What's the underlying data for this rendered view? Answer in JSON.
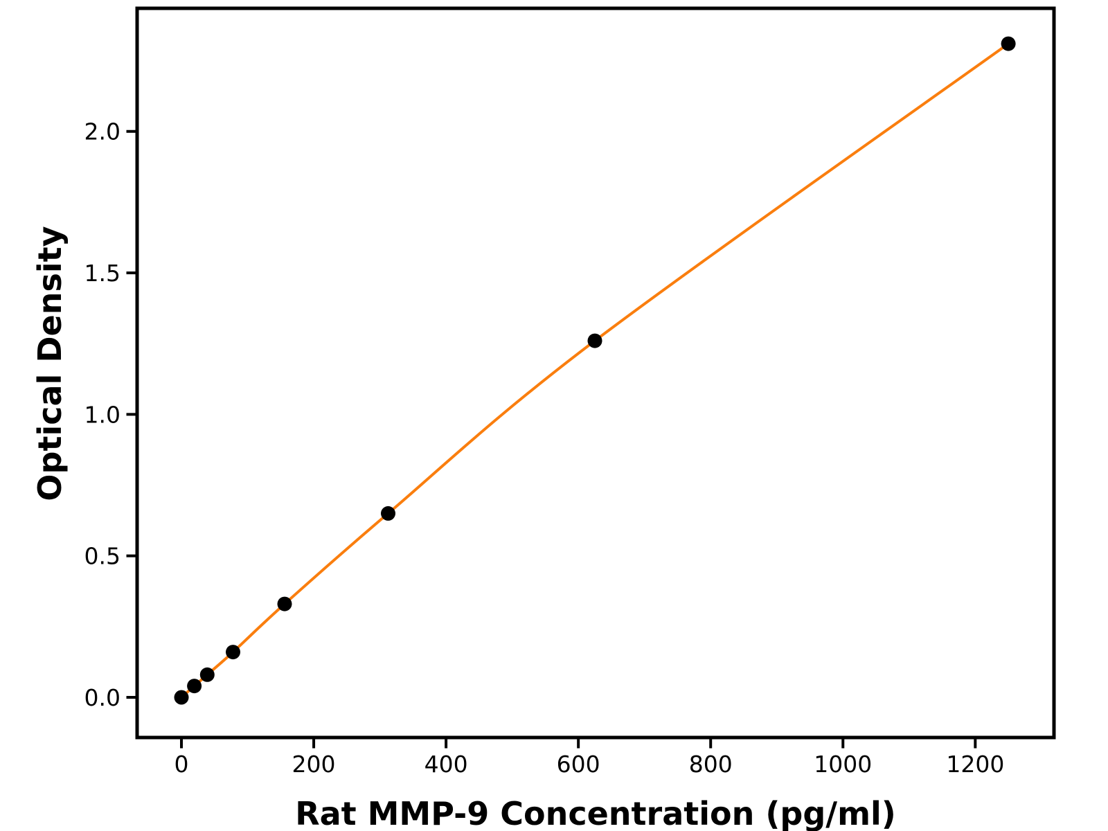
{
  "figure": {
    "background_color": "#FFFFFF",
    "axis_color": "#000000"
  },
  "chart_data": {
    "type": "line",
    "title": "",
    "xlabel": "Rat MMP-9 Concentration (pg/ml)",
    "ylabel": "Optical Density",
    "series": [
      {
        "x": [
          0,
          19.5,
          39,
          78,
          156,
          312.5,
          625,
          1250
        ],
        "y": [
          0.0,
          0.04,
          0.08,
          0.16,
          0.33,
          0.65,
          1.26,
          2.31
        ],
        "line_color": "#FA7E0E",
        "marker": "circle",
        "marker_color": "#000000",
        "line_width": 4,
        "marker_radius": 10.5
      }
    ],
    "xticks": [
      0,
      200,
      400,
      600,
      800,
      1000,
      1200
    ],
    "xtick_labels": [
      "0",
      "200",
      "400",
      "600",
      "800",
      "1000",
      "1200"
    ],
    "yticks": [
      0,
      0.5,
      1.0,
      1.5,
      2.0
    ],
    "ytick_labels": [
      "0.0",
      "0.5",
      "1.0",
      "1.5",
      "2.0"
    ],
    "xlim": [
      -67,
      1319
    ],
    "ylim": [
      -0.142,
      2.435
    ],
    "grid": false,
    "legend_position": "none"
  }
}
